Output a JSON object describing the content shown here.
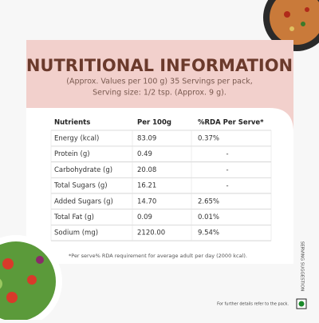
{
  "header": {
    "title": "NUTRITIONAL INFORMATION",
    "subtitle": [
      "(Approx. Values per 100 g) 35 Servings per pack,",
      "Serving size: 1/2 tsp. (Approx. 9 g)."
    ]
  },
  "table": {
    "header": [
      "Nutrients",
      "Per 100g",
      "%RDA Per Serve*"
    ],
    "rows": [
      [
        "Energy (kcal)",
        "83.09",
        "0.37%"
      ],
      [
        "Protein (g)",
        "0.49",
        "-"
      ],
      [
        "Carbohydrate (g)",
        "20.08",
        "-"
      ],
      [
        "Total Sugars (g)",
        "16.21",
        "-"
      ],
      [
        "Added Sugars (g)",
        "14.70",
        "2.65%"
      ],
      [
        "Total Fat (g)",
        "0.09",
        "0.01%"
      ],
      [
        "Sodium (mg)",
        "2120.00",
        "9.54%"
      ]
    ]
  },
  "footnote": "*Per serve% RDA requirement for average adult per day (2000 kcal).",
  "side_label": "SERVING SUGGESTION",
  "footer": "For further details refer to the pack."
}
